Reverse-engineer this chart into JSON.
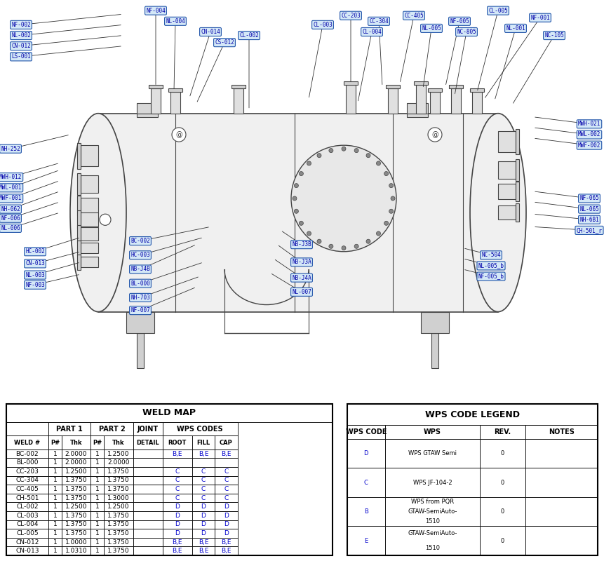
{
  "weld_map_title": "WELD MAP",
  "weld_map_headers": [
    "WELD #",
    "P#",
    "Thk",
    "P#",
    "Thk",
    "DETAIL",
    "ROOT",
    "FILL",
    "CAP"
  ],
  "weld_map_group_headers": [
    [
      "PART 1",
      2
    ],
    [
      "PART 2",
      2
    ],
    [
      "JOINT",
      1
    ],
    [
      "WPS CODES",
      3
    ]
  ],
  "weld_map_rows": [
    [
      "BC-002",
      "1",
      "2.0000",
      "1",
      "1.2500",
      "",
      "B,E",
      "B,E",
      "B,E"
    ],
    [
      "BL-000",
      "1",
      "2.0000",
      "1",
      "2.0000",
      "",
      "",
      "",
      ""
    ],
    [
      "CC-203",
      "1",
      "1.2500",
      "1",
      "1.3750",
      "",
      "C",
      "C",
      "C"
    ],
    [
      "CC-304",
      "1",
      "1.3750",
      "1",
      "1.3750",
      "",
      "C",
      "C",
      "C"
    ],
    [
      "CC-405",
      "1",
      "1.3750",
      "1",
      "1.3750",
      "",
      "C",
      "C",
      "C"
    ],
    [
      "CH-501",
      "1",
      "1.3750",
      "1",
      "1.3000",
      "",
      "C",
      "C",
      "C"
    ],
    [
      "CL-002",
      "1",
      "1.2500",
      "1",
      "1.2500",
      "",
      "D",
      "D",
      "D"
    ],
    [
      "CL-003",
      "1",
      "1.3750",
      "1",
      "1.3750",
      "",
      "D",
      "D",
      "D"
    ],
    [
      "CL-004",
      "1",
      "1.3750",
      "1",
      "1.3750",
      "",
      "D",
      "D",
      "D"
    ],
    [
      "CL-005",
      "1",
      "1.3750",
      "1",
      "1.3750",
      "",
      "D",
      "D",
      "D"
    ],
    [
      "CN-012",
      "1",
      "1.0000",
      "1",
      "1.3750",
      "",
      "B,E",
      "B,E",
      "B,E"
    ],
    [
      "CN-013",
      "1",
      "1.0310",
      "1",
      "1.3750",
      "",
      "B,E",
      "B,E",
      "B,E"
    ]
  ],
  "legend_title": "WPS CODE LEGEND",
  "legend_headers": [
    "WPS CODE",
    "WPS",
    "REV.",
    "NOTES"
  ],
  "legend_rows": [
    [
      "D",
      "WPS GTAW Semi",
      "0",
      ""
    ],
    [
      "C",
      "WPS JF-104-2",
      "0",
      ""
    ],
    [
      "B",
      "WPS from PQR\nGTAW-SemiAuto-\n1510",
      "0",
      ""
    ],
    [
      "E",
      "GTAW-SemiAuto-\n1510",
      "0",
      ""
    ]
  ],
  "label_bg": "#d4e8f7",
  "label_border": "#2255aa",
  "label_text": "#0000aa",
  "drawing_line": "#555555",
  "vessel_fill": "#e8e8e8",
  "vessel_line": "#444444",
  "table_header_bg": "#ffffff",
  "table_row_bg": "#ffffff",
  "table_border": "#000000",
  "wps_color": "#0000cc"
}
